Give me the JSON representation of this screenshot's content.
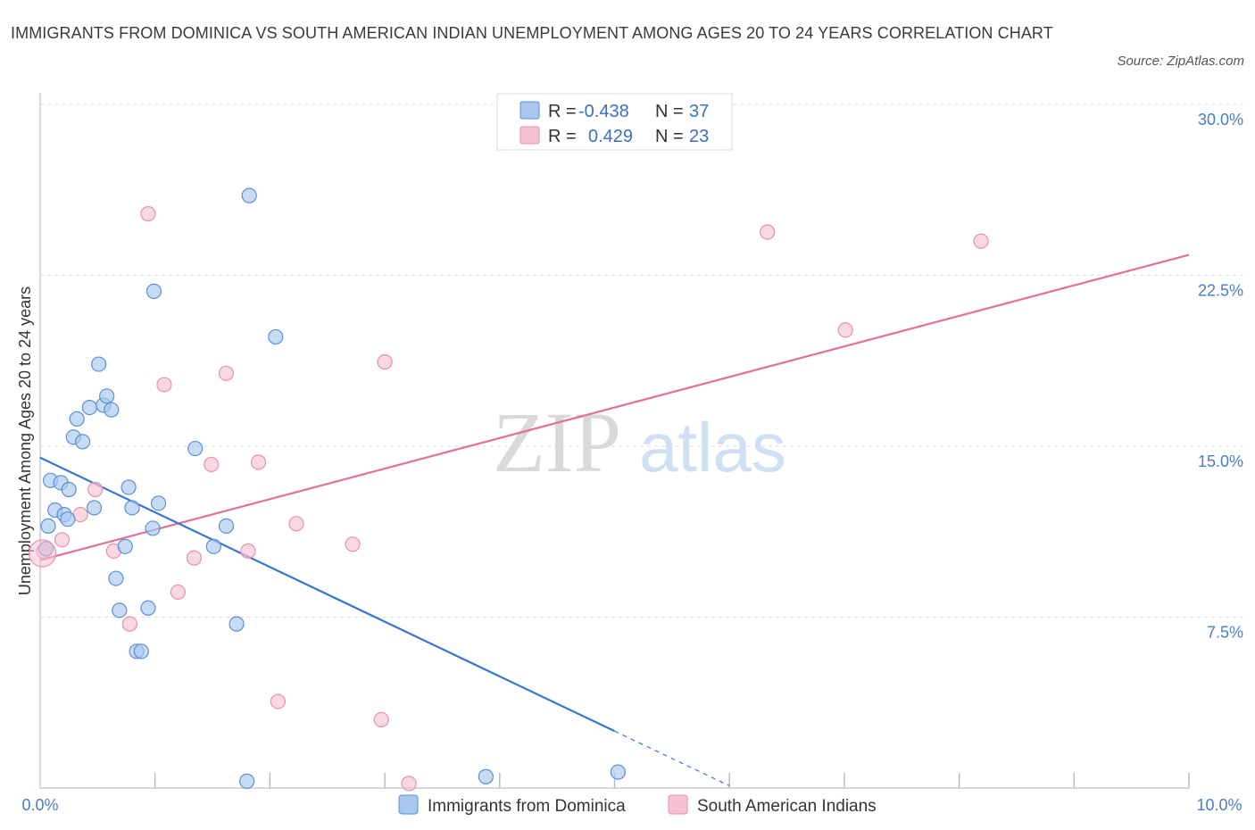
{
  "title": "IMMIGRANTS FROM DOMINICA VS SOUTH AMERICAN INDIAN UNEMPLOYMENT AMONG AGES 20 TO 24 YEARS CORRELATION CHART",
  "source": "Source: ZipAtlas.com",
  "watermark": {
    "zip": "ZIP",
    "atlas": "atlas"
  },
  "colors": {
    "blue_fill": "#a9c8ef",
    "blue_stroke": "#5b8fd6",
    "blue_line": "#3576d0",
    "pink_fill": "#f7c3d3",
    "pink_stroke": "#e690ac",
    "pink_line": "#e0709a",
    "grid": "#dddddd",
    "tick_text": "#4a7cc7"
  },
  "legend": {
    "rows": [
      {
        "r_label": "R = ",
        "r_value": "-0.438",
        "n_label": "N = ",
        "n_value": "37"
      },
      {
        "r_label": "R = ",
        "r_value": "0.429",
        "n_label": "N = ",
        "n_value": "23"
      }
    ]
  },
  "chart_data": {
    "type": "scatter",
    "title": "IMMIGRANTS FROM DOMINICA VS SOUTH AMERICAN INDIAN UNEMPLOYMENT AMONG AGES 20 TO 24 YEARS CORRELATION CHART",
    "xlabel": "",
    "ylabel": "Unemployment Among Ages 20 to 24 years",
    "xlim": [
      0,
      10
    ],
    "ylim": [
      0,
      30
    ],
    "x_tick_labels": [
      "0.0%",
      "10.0%"
    ],
    "y_ticks": [
      7.5,
      15.0,
      22.5,
      30.0
    ],
    "y_tick_labels": [
      "7.5%",
      "15.0%",
      "22.5%",
      "30.0%"
    ],
    "grid": true,
    "legend_position": "top-center",
    "series": [
      {
        "name": "Immigrants from Dominica",
        "color": "blue",
        "points": [
          [
            0.05,
            10.5
          ],
          [
            0.07,
            11.5
          ],
          [
            0.09,
            13.5
          ],
          [
            0.13,
            12.2
          ],
          [
            0.18,
            13.4
          ],
          [
            0.21,
            12.0
          ],
          [
            0.24,
            11.8
          ],
          [
            0.25,
            13.1
          ],
          [
            0.29,
            15.4
          ],
          [
            0.32,
            16.2
          ],
          [
            0.37,
            15.2
          ],
          [
            0.43,
            16.7
          ],
          [
            0.47,
            12.3
          ],
          [
            0.51,
            18.6
          ],
          [
            0.55,
            16.8
          ],
          [
            0.58,
            17.2
          ],
          [
            0.62,
            16.6
          ],
          [
            0.66,
            9.2
          ],
          [
            0.69,
            7.8
          ],
          [
            0.74,
            10.6
          ],
          [
            0.77,
            13.2
          ],
          [
            0.8,
            12.3
          ],
          [
            0.84,
            6.0
          ],
          [
            0.88,
            6.0
          ],
          [
            0.94,
            7.9
          ],
          [
            0.98,
            11.4
          ],
          [
            0.99,
            21.8
          ],
          [
            1.03,
            12.5
          ],
          [
            1.35,
            14.9
          ],
          [
            1.51,
            10.6
          ],
          [
            1.62,
            11.5
          ],
          [
            1.71,
            7.2
          ],
          [
            1.8,
            0.3
          ],
          [
            1.82,
            26.0
          ],
          [
            2.05,
            19.8
          ],
          [
            3.88,
            0.5
          ],
          [
            5.03,
            0.7
          ]
        ],
        "trend": {
          "x0": 0.0,
          "y0": 14.5,
          "x1": 5.0,
          "y1": 2.5,
          "dashed_to_x": 6.0,
          "dashed_to_y": 0.1
        }
      },
      {
        "name": "South American Indians",
        "color": "pink",
        "points": [
          [
            0.03,
            10.4
          ],
          [
            0.19,
            10.9
          ],
          [
            0.35,
            12.0
          ],
          [
            0.48,
            13.1
          ],
          [
            0.64,
            10.4
          ],
          [
            0.78,
            7.2
          ],
          [
            0.94,
            25.2
          ],
          [
            1.08,
            17.7
          ],
          [
            1.2,
            8.6
          ],
          [
            1.34,
            10.1
          ],
          [
            1.49,
            14.2
          ],
          [
            1.62,
            18.2
          ],
          [
            1.81,
            10.4
          ],
          [
            1.9,
            14.3
          ],
          [
            2.07,
            3.8
          ],
          [
            2.23,
            11.6
          ],
          [
            2.72,
            10.7
          ],
          [
            2.97,
            3.0
          ],
          [
            3.0,
            18.7
          ],
          [
            3.21,
            0.2
          ],
          [
            6.33,
            24.4
          ],
          [
            7.01,
            20.1
          ],
          [
            8.19,
            24.0
          ]
        ],
        "trend": {
          "x0": 0.0,
          "y0": 10.0,
          "x1": 10.0,
          "y1": 23.4
        }
      }
    ]
  }
}
